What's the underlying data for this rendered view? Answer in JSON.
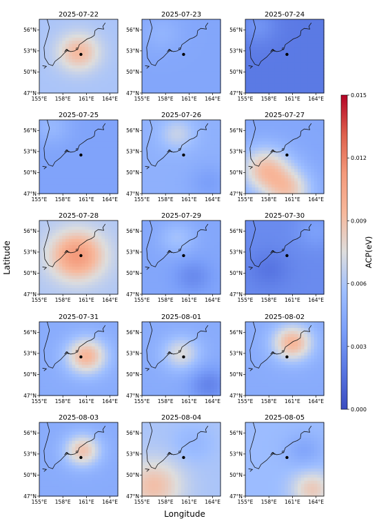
{
  "figure": {
    "xlabel": "Longitude",
    "ylabel": "Latitude"
  },
  "colorbar": {
    "label": "ACP(eV)",
    "ticks": [
      "0.000",
      "0.003",
      "0.006",
      "0.009",
      "0.012",
      "0.015"
    ],
    "range": [
      0,
      0.015
    ],
    "colormap": "coolwarm",
    "colors": {
      "low": "#3b4cc0",
      "mid": "#dddddd",
      "high": "#b40426"
    }
  },
  "chart_data": {
    "type": "heatmap",
    "grid": [
      5,
      3
    ],
    "xlim": [
      155,
      165
    ],
    "ylim": [
      47,
      57.5
    ],
    "xticks": [
      "155°E",
      "158°E",
      "161°E",
      "164°E"
    ],
    "yticks": [
      "47°N",
      "50°N",
      "53°N",
      "56°N"
    ],
    "marker": {
      "lon": 160.3,
      "lat": 52.5
    },
    "panels": [
      {
        "title": "2025-07-22",
        "base": 0.006,
        "blobs": [
          {
            "lon": 160.0,
            "lat": 52.8,
            "v": 0.0093,
            "r": 2.6
          }
        ]
      },
      {
        "title": "2025-07-23",
        "base": 0.0042,
        "blobs": [
          {
            "lon": 157.5,
            "lat": 55.5,
            "v": 0.005,
            "r": 2.5
          }
        ]
      },
      {
        "title": "2025-07-24",
        "base": 0.002,
        "blobs": [
          {
            "lon": 156.5,
            "lat": 56.5,
            "v": 0.0032,
            "r": 2.5
          }
        ]
      },
      {
        "title": "2025-07-25",
        "base": 0.004,
        "blobs": [
          {
            "lon": 156.5,
            "lat": 56.5,
            "v": 0.0052,
            "r": 2.5
          }
        ]
      },
      {
        "title": "2025-07-26",
        "base": 0.0048,
        "blobs": [
          {
            "lon": 159.5,
            "lat": 55.5,
            "v": 0.0068,
            "r": 2.3
          },
          {
            "lon": 163.5,
            "lat": 48.5,
            "v": 0.0038,
            "r": 2.5
          }
        ]
      },
      {
        "title": "2025-07-27",
        "base": 0.0042,
        "blobs": [
          {
            "lon": 157.5,
            "lat": 50.5,
            "v": 0.0088,
            "r": 3.2
          },
          {
            "lon": 160.5,
            "lat": 47.5,
            "v": 0.0082,
            "r": 3.0
          }
        ]
      },
      {
        "title": "2025-07-28",
        "base": 0.0062,
        "blobs": [
          {
            "lon": 159.8,
            "lat": 52.5,
            "v": 0.0112,
            "r": 3.3
          }
        ]
      },
      {
        "title": "2025-07-29",
        "base": 0.0042,
        "blobs": [
          {
            "lon": 159.5,
            "lat": 55.0,
            "v": 0.0058,
            "r": 2.3
          },
          {
            "lon": 161.5,
            "lat": 49.5,
            "v": 0.0028,
            "r": 2.4
          }
        ]
      },
      {
        "title": "2025-07-30",
        "base": 0.0028,
        "blobs": [
          {
            "lon": 158.0,
            "lat": 50.5,
            "v": 0.0018,
            "r": 2.6
          },
          {
            "lon": 164.0,
            "lat": 56.0,
            "v": 0.0038,
            "r": 2.5
          }
        ]
      },
      {
        "title": "2025-07-31",
        "base": 0.0045,
        "blobs": [
          {
            "lon": 161.0,
            "lat": 52.6,
            "v": 0.0095,
            "r": 2.6
          }
        ]
      },
      {
        "title": "2025-08-01",
        "base": 0.0045,
        "blobs": [
          {
            "lon": 160.0,
            "lat": 53.0,
            "v": 0.0075,
            "r": 2.4
          },
          {
            "lon": 163.5,
            "lat": 48.5,
            "v": 0.0025,
            "r": 2.5
          }
        ]
      },
      {
        "title": "2025-08-02",
        "base": 0.0045,
        "blobs": [
          {
            "lon": 161.0,
            "lat": 54.5,
            "v": 0.0095,
            "r": 2.6
          }
        ]
      },
      {
        "title": "2025-08-03",
        "base": 0.0045,
        "blobs": [
          {
            "lon": 160.5,
            "lat": 53.5,
            "v": 0.0088,
            "r": 2.3
          }
        ]
      },
      {
        "title": "2025-08-04",
        "base": 0.006,
        "blobs": [
          {
            "lon": 156.5,
            "lat": 48.5,
            "v": 0.009,
            "r": 3.6
          },
          {
            "lon": 161.5,
            "lat": 54.5,
            "v": 0.0052,
            "r": 2.5
          }
        ]
      },
      {
        "title": "2025-08-05",
        "base": 0.0055,
        "blobs": [
          {
            "lon": 162.5,
            "lat": 53.5,
            "v": 0.0042,
            "r": 2.4
          },
          {
            "lon": 163.5,
            "lat": 48.0,
            "v": 0.0085,
            "r": 2.6
          }
        ]
      }
    ]
  }
}
